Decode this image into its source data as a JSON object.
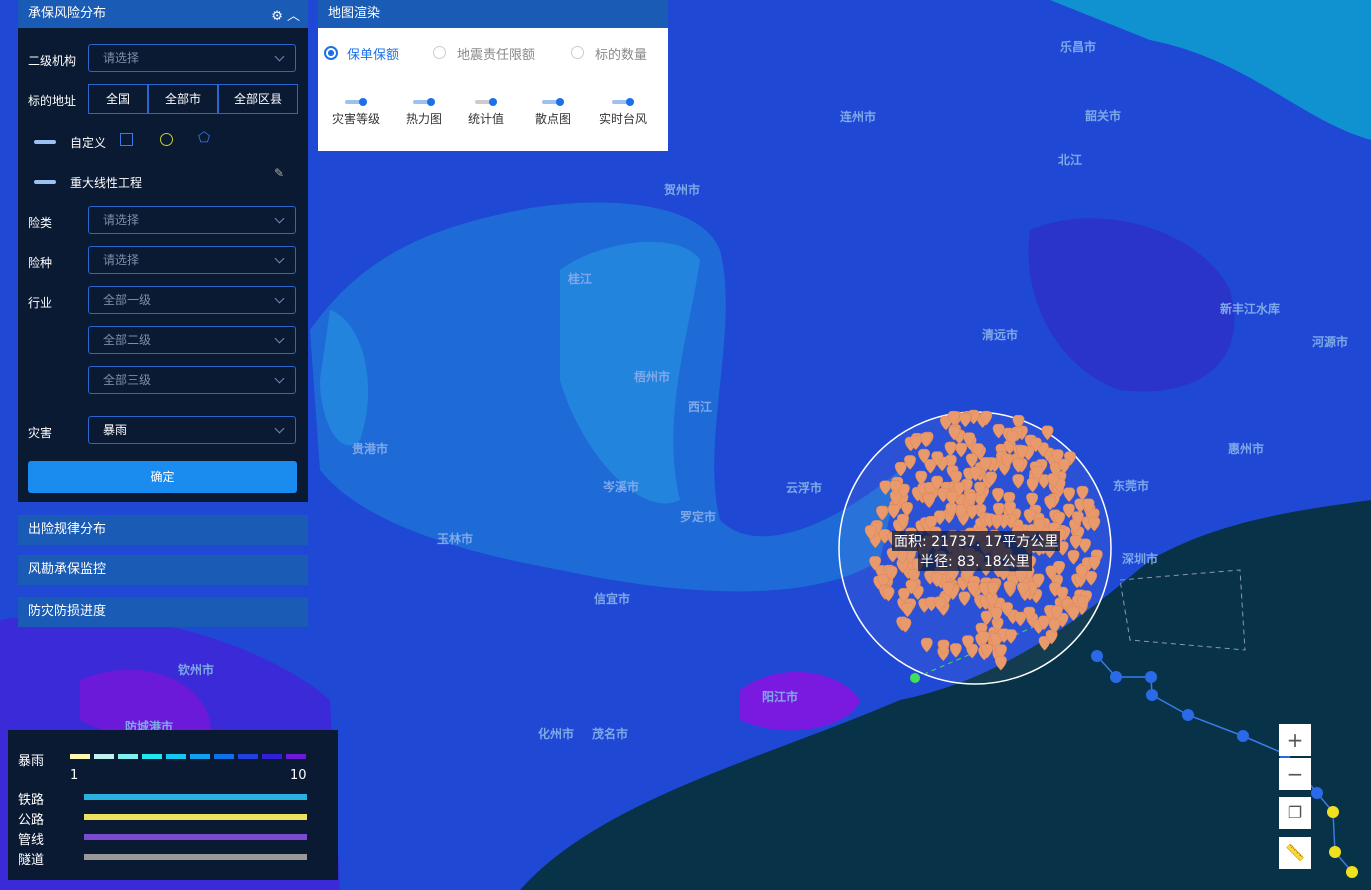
{
  "left_panel": {
    "title": "承保风险分布",
    "org_label": "二级机构",
    "org_placeholder": "请选择",
    "address_label": "标的地址",
    "address_buttons": [
      "全国",
      "全部市",
      "全部区县"
    ],
    "custom_label": "自定义",
    "linear_label": "重大线性工程",
    "class_label": "险类",
    "class_placeholder": "请选择",
    "type_label": "险种",
    "type_placeholder": "请选择",
    "industry_label": "行业",
    "industry_levels": [
      "全部一级",
      "全部二级",
      "全部三级"
    ],
    "disaster_label": "灾害",
    "disaster_value": "暴雨",
    "confirm": "确定"
  },
  "collapsed_panels": [
    "出险规律分布",
    "风勘承保监控",
    "防灾防损进度"
  ],
  "render_panel": {
    "title": "地图渲染",
    "radios": [
      "保单保额",
      "地震责任限额",
      "标的数量"
    ],
    "toggles": [
      "灾害等级",
      "热力图",
      "统计值",
      "散点图",
      "实时台风"
    ]
  },
  "map": {
    "labels": [
      "乐昌市",
      "韶关市",
      "连州市",
      "清远市",
      "梧州市",
      "云浮市",
      "贵港市",
      "玉林市",
      "阳江市",
      "茂名市",
      "化州市",
      "钦州市",
      "防城港市",
      "惠州市",
      "东莞市",
      "深圳市",
      "河源市",
      "新丰江水库",
      "北江",
      "西江",
      "桂江",
      "贺州市",
      "罗定市",
      "信宜市",
      "岑溪市"
    ],
    "measure": {
      "area": "面积: 21737. 17平方公里",
      "radius": "半径: 83. 18公里"
    }
  },
  "legend": {
    "title": "暴雨",
    "min": 1,
    "max": 10,
    "layers": [
      "铁路",
      "公路",
      "管线",
      "隧道"
    ]
  }
}
